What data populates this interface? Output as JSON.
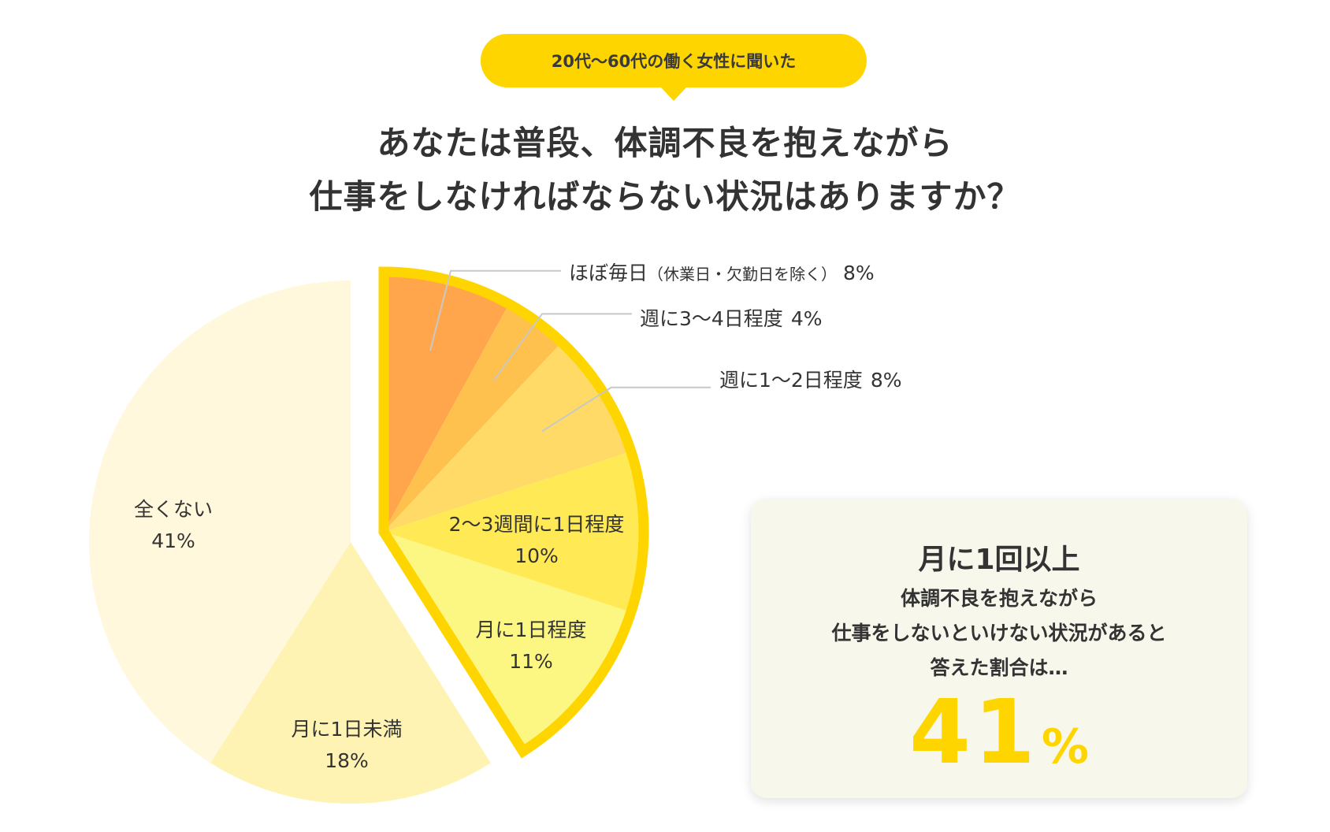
{
  "header": {
    "badge": "20代〜60代の働く女性に聞いた",
    "title_line1": "あなたは普段、体調不良を抱えながら",
    "title_line2": "仕事をしなければならない状況はありますか？"
  },
  "chart_data": {
    "type": "pie",
    "title": "あなたは普段、体調不良を抱えながら仕事をしなければならない状況はありますか？",
    "unit": "%",
    "slices": [
      {
        "label": "ほぼ毎日",
        "note": "（休業日・欠勤日を除く）",
        "value": 8,
        "value_label": "8%",
        "color": "#ffa64d",
        "highlighted": true,
        "label_style": "callout"
      },
      {
        "label": "週に3〜4日程度",
        "value": 4,
        "value_label": "4%",
        "color": "#ffc14d",
        "highlighted": true,
        "label_style": "callout"
      },
      {
        "label": "週に1〜2日程度",
        "value": 8,
        "value_label": "8%",
        "color": "#ffda66",
        "highlighted": true,
        "label_style": "callout"
      },
      {
        "label": "2〜3週間に1日程度",
        "value": 10,
        "value_label": "10%",
        "color": "#ffe955",
        "highlighted": true,
        "label_style": "inside"
      },
      {
        "label": "月に1日程度",
        "value": 11,
        "value_label": "11%",
        "color": "#fcf782",
        "highlighted": true,
        "label_style": "inside"
      },
      {
        "label": "月に1日未満",
        "value": 18,
        "value_label": "18%",
        "color": "#fff3b3",
        "highlighted": false,
        "label_style": "inside"
      },
      {
        "label": "全くない",
        "value": 41,
        "value_label": "41%",
        "color": "#fff8dc",
        "highlighted": false,
        "label_style": "inside"
      }
    ],
    "highlight_border_color": "#ffd500",
    "callout_line_color": "#c8c8c8",
    "label_color": "#333333"
  },
  "summary": {
    "heading": "月に1回以上",
    "body_line1": "体調不良を抱えながら",
    "body_line2": "仕事をしないといけない状況があると",
    "body_line3": "答えた割合は…",
    "value": "41",
    "unit": "%"
  },
  "colors": {
    "accent": "#ffd500",
    "text": "#333333",
    "card_background": "#f8f7ec"
  }
}
